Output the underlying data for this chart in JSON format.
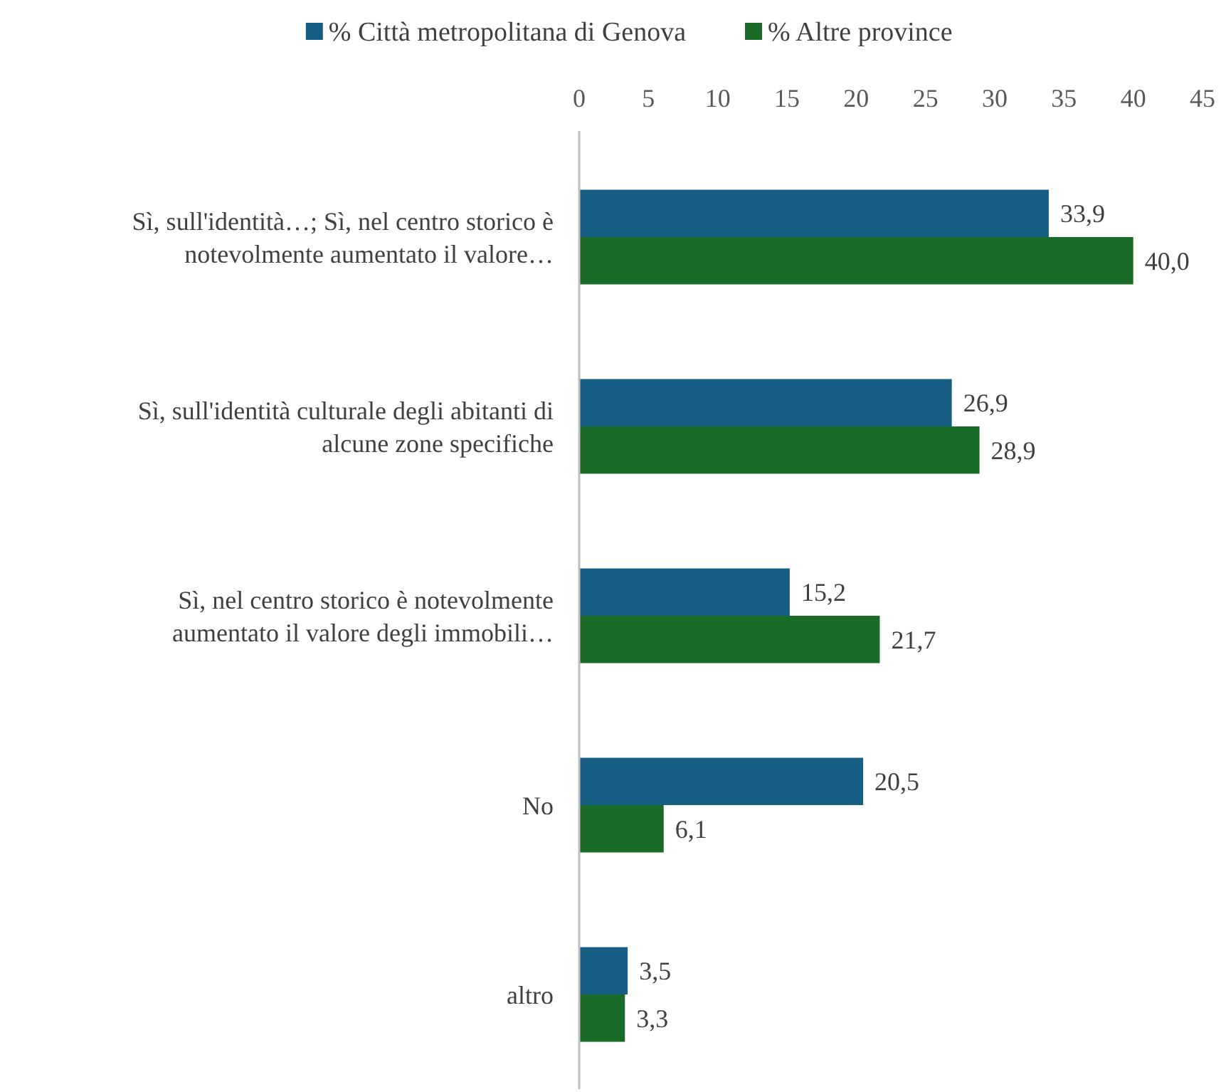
{
  "chart_data": {
    "type": "bar",
    "orientation": "horizontal",
    "legend": "top",
    "categories": [
      "Sì, sull'identità…; Sì, nel centro storico è notevolmente aumentato il valore…",
      "Sì, sull'identità culturale degli abitanti di alcune zone specifiche",
      "Sì, nel centro storico è notevolmente aumentato il valore degli immobili…",
      "No",
      "altro"
    ],
    "series": [
      {
        "name": "% Città metropolitana di Genova",
        "color": "#175e84",
        "values": [
          33.9,
          26.9,
          15.2,
          20.5,
          3.5
        ],
        "value_labels": [
          "33,9",
          "26,9",
          "15,2",
          "20,5",
          "3,5"
        ]
      },
      {
        "name": "% Altre province",
        "color": "#1a6b27",
        "values": [
          40.0,
          28.9,
          21.7,
          6.1,
          3.3
        ],
        "value_labels": [
          "40,0",
          "28,9",
          "21,7",
          "6,1",
          "3,3"
        ]
      }
    ],
    "xlim": [
      0,
      45
    ],
    "xticks": [
      0,
      5,
      10,
      15,
      20,
      25,
      30,
      35,
      40,
      45
    ],
    "grid": false
  }
}
